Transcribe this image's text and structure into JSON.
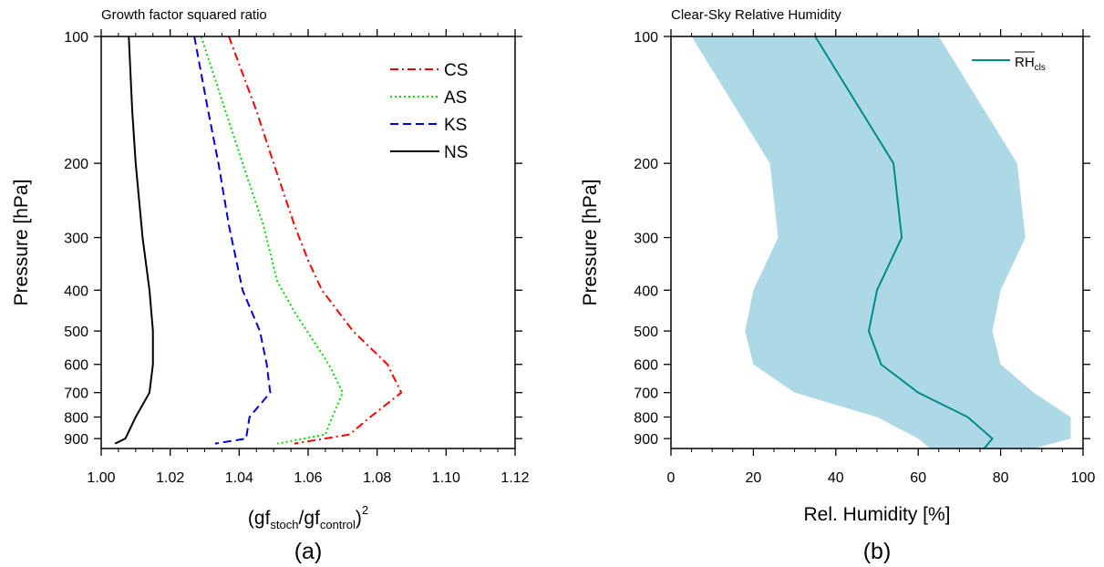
{
  "chart_data": [
    {
      "type": "line",
      "title": "Growth factor squared ratio",
      "panel_label": "(a)",
      "xlabel": {
        "base": "(gf",
        "sub1": "stoch",
        "mid": "/gf",
        "sub2": "control",
        "close": ")",
        "sup": "2"
      },
      "ylabel": "Pressure  [hPa]",
      "xlim": [
        1.0,
        1.12
      ],
      "ylim": [
        950,
        100
      ],
      "y_scale": "log",
      "x_ticks": [
        1.0,
        1.02,
        1.04,
        1.06,
        1.08,
        1.1,
        1.12
      ],
      "x_tick_labels": [
        "1.00",
        "1.02",
        "1.04",
        "1.06",
        "1.08",
        "1.10",
        "1.12"
      ],
      "y_ticks": [
        100,
        200,
        300,
        400,
        500,
        600,
        700,
        800,
        900
      ],
      "y_tick_labels": [
        "100",
        "200",
        "300",
        "400",
        "500",
        "600",
        "700",
        "800",
        "900"
      ],
      "legend_position": "top-right",
      "series": [
        {
          "name": "CS",
          "color": "#ff0000",
          "dash": "dashdot",
          "x": [
            1.037,
            1.045,
            1.05,
            1.056,
            1.06,
            1.064,
            1.073,
            1.083,
            1.087,
            1.078,
            1.072,
            1.056
          ],
          "y": [
            100,
            150,
            200,
            280,
            340,
            400,
            500,
            600,
            700,
            800,
            880,
            925
          ]
        },
        {
          "name": "AS",
          "color": "#00dd00",
          "dash": "dot",
          "x": [
            1.029,
            1.036,
            1.041,
            1.047,
            1.051,
            1.056,
            1.066,
            1.07,
            1.067,
            1.065,
            1.051
          ],
          "y": [
            100,
            150,
            200,
            280,
            380,
            450,
            600,
            700,
            800,
            880,
            925
          ]
        },
        {
          "name": "KS",
          "color": "#0000dd",
          "dash": "dash",
          "x": [
            1.027,
            1.031,
            1.034,
            1.037,
            1.041,
            1.046,
            1.048,
            1.049,
            1.043,
            1.042,
            1.033
          ],
          "y": [
            100,
            150,
            200,
            280,
            400,
            500,
            600,
            700,
            800,
            900,
            925
          ]
        },
        {
          "name": "NS",
          "color": "#000000",
          "dash": "solid",
          "x": [
            1.008,
            1.009,
            1.01,
            1.012,
            1.014,
            1.015,
            1.015,
            1.014,
            1.01,
            1.007,
            1.004
          ],
          "y": [
            100,
            150,
            200,
            300,
            400,
            500,
            600,
            700,
            800,
            900,
            925
          ]
        }
      ]
    },
    {
      "type": "area",
      "title": "Clear-Sky Relative Humidity",
      "panel_label": "(b)",
      "xlabel": "Rel. Humidity [%]",
      "ylabel": "Pressure [hPa]",
      "xlim": [
        0,
        100
      ],
      "ylim": [
        950,
        100
      ],
      "y_scale": "log",
      "x_ticks": [
        0,
        20,
        40,
        60,
        80,
        100
      ],
      "x_tick_labels": [
        "0",
        "20",
        "40",
        "60",
        "80",
        "100"
      ],
      "y_ticks": [
        100,
        200,
        300,
        400,
        500,
        600,
        700,
        800,
        900
      ],
      "y_tick_labels": [
        "100",
        "200",
        "300",
        "400",
        "500",
        "600",
        "700",
        "800",
        "900"
      ],
      "legend_position": "top-right",
      "band": {
        "color": "#add8e6",
        "y": [
          100,
          200,
          300,
          400,
          500,
          600,
          700,
          800,
          900,
          950
        ],
        "lower": [
          5,
          24,
          26,
          20,
          18,
          20,
          30,
          50,
          60,
          63
        ],
        "upper": [
          65,
          84,
          86,
          80,
          78,
          80,
          88,
          97,
          97,
          88
        ]
      },
      "series": [
        {
          "name": {
            "base": "RH",
            "sub": "cls"
          },
          "color": "#008b8b",
          "dash": "solid",
          "x": [
            35,
            54,
            56,
            50,
            48,
            51,
            60,
            72,
            78,
            76
          ],
          "y": [
            100,
            200,
            300,
            400,
            500,
            600,
            700,
            800,
            900,
            950
          ]
        }
      ]
    }
  ]
}
